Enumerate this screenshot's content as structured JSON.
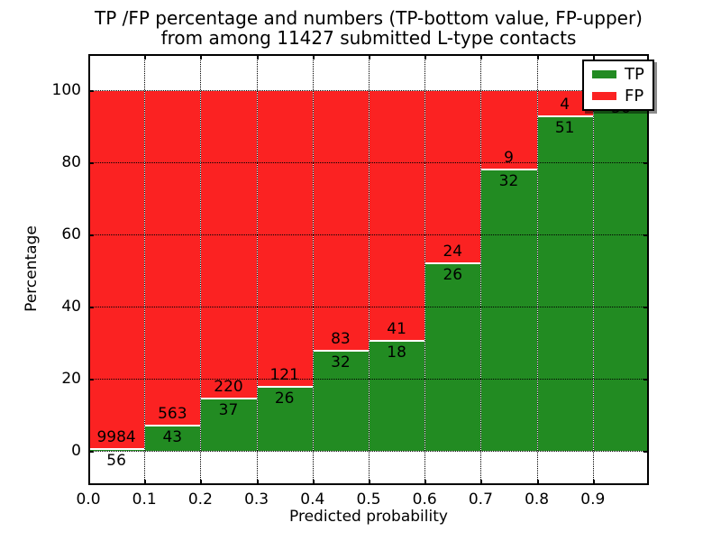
{
  "title": {
    "line1": "TP /FP percentage and numbers (TP-bottom value, FP-upper)",
    "line2": "from among 11427 submitted L-type contacts"
  },
  "axes": {
    "ylabel": "Percentage",
    "xlabel": "Predicted probability",
    "x_tick_labels": [
      "0.0",
      "0.1",
      "0.2",
      "0.3",
      "0.4",
      "0.5",
      "0.6",
      "0.7",
      "0.8",
      "0.9"
    ],
    "y_tick_labels": [
      "0",
      "20",
      "40",
      "60",
      "80",
      "100"
    ],
    "y_tick_values": [
      0,
      20,
      40,
      60,
      80,
      100
    ]
  },
  "legend": {
    "entries": [
      {
        "label": "TP",
        "color": "#228b22"
      },
      {
        "label": "FP",
        "color": "#fb2222"
      }
    ]
  },
  "colors": {
    "tp": "#228b22",
    "fp": "#fb2222",
    "grid": "#000000",
    "background": "#ffffff"
  },
  "chart_data": {
    "type": "bar",
    "stacked": true,
    "normalized_to_percent": true,
    "title": "TP /FP percentage and numbers (TP-bottom value, FP-upper) from among 11427 submitted L-type contacts",
    "xlabel": "Predicted probability",
    "ylabel": "Percentage",
    "xlim": [
      0.0,
      1.0
    ],
    "ylim": [
      -10,
      110
    ],
    "grid": true,
    "legend_position": "upper right",
    "total_contacts": 11427,
    "bin_edges": [
      0.0,
      0.1,
      0.2,
      0.3,
      0.4,
      0.5,
      0.6,
      0.7,
      0.8,
      0.9,
      1.0
    ],
    "series": [
      {
        "name": "TP",
        "color": "#228b22",
        "counts": [
          56,
          43,
          37,
          26,
          32,
          18,
          26,
          32,
          51,
          56
        ]
      },
      {
        "name": "FP",
        "color": "#fb2222",
        "counts": [
          9984,
          563,
          220,
          121,
          83,
          41,
          24,
          9,
          4,
          1
        ]
      }
    ],
    "fp_label_visible": [
      true,
      true,
      true,
      true,
      true,
      true,
      true,
      true,
      true,
      false
    ],
    "tp_label_visible": [
      true,
      true,
      true,
      true,
      true,
      true,
      true,
      true,
      true,
      true
    ]
  }
}
